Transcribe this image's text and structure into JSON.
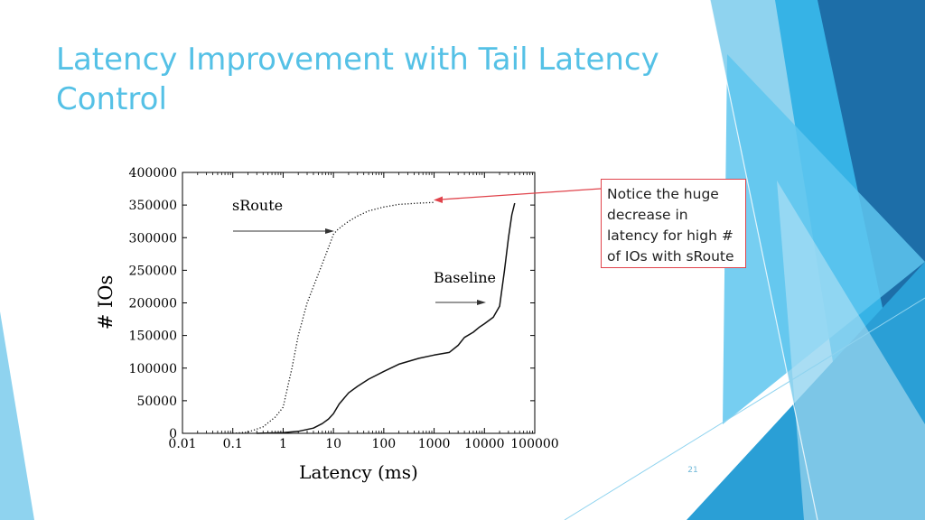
{
  "slide": {
    "title_lines": [
      "Latency Improvement with Tail Latency",
      "Control"
    ],
    "callout_lines": [
      "Notice the huge",
      "decrease in",
      "latency for high #",
      "of IOs with sRoute"
    ],
    "page_number": "21"
  },
  "theme": {
    "title_color": "#55c1e6",
    "accent_color": "#e0434b",
    "decor_colors": [
      "#8fd3ef",
      "#36b3e6",
      "#2a90c7",
      "#1d6ea8"
    ]
  },
  "chart_data": {
    "type": "line",
    "x_scale": "log",
    "xlabel": "Latency (ms)",
    "ylabel": "# IOs",
    "xlim": [
      0.01,
      100000
    ],
    "ylim": [
      0,
      400000
    ],
    "x_ticks": [
      "0.01",
      "0.1",
      "1",
      "10",
      "100",
      "1000",
      "10000",
      "100000"
    ],
    "y_ticks": [
      "0",
      "50000",
      "100000",
      "150000",
      "200000",
      "250000",
      "300000",
      "350000",
      "400000"
    ],
    "annotations": [
      "sRoute",
      "Baseline"
    ],
    "series": [
      {
        "name": "sRoute",
        "style": "dotted",
        "x": [
          0.1,
          0.2,
          0.4,
          0.7,
          1,
          1.5,
          2,
          3,
          4,
          6,
          8,
          10,
          12,
          15,
          20,
          30,
          50,
          100,
          200,
          500,
          1000
        ],
        "y": [
          0,
          2000,
          10000,
          25000,
          40000,
          100000,
          150000,
          200000,
          225000,
          260000,
          285000,
          305000,
          312000,
          318000,
          325000,
          333000,
          341000,
          347000,
          351000,
          353000,
          354000
        ]
      },
      {
        "name": "Baseline",
        "style": "solid",
        "x": [
          0.3,
          1,
          2,
          4,
          6,
          8,
          10,
          13,
          20,
          30,
          50,
          100,
          200,
          500,
          1000,
          2000,
          3000,
          4000,
          6000,
          8000,
          10000,
          15000,
          20000,
          25000,
          30000,
          35000,
          40000
        ],
        "y": [
          0,
          1000,
          3000,
          8000,
          15000,
          22000,
          30000,
          45000,
          62000,
          72000,
          83000,
          95000,
          106000,
          115000,
          120000,
          124000,
          135000,
          147000,
          155000,
          163000,
          168000,
          178000,
          195000,
          250000,
          300000,
          335000,
          353000
        ]
      }
    ]
  }
}
